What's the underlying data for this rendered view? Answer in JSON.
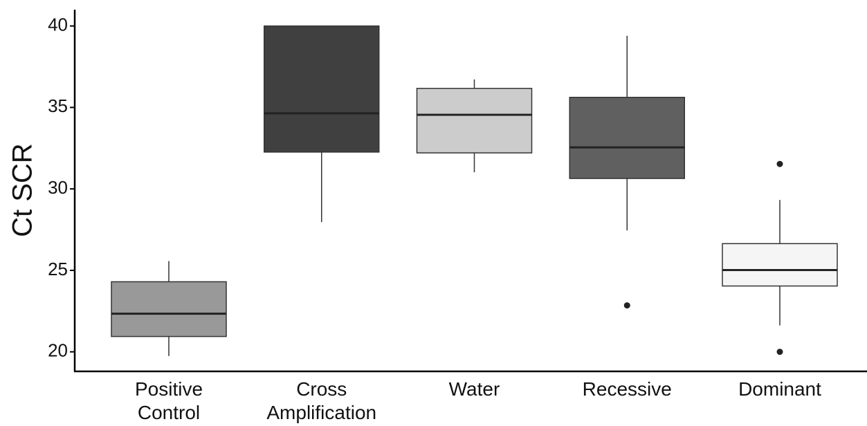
{
  "chart_data": {
    "type": "box",
    "y_label": "Ct SCR",
    "categories": [
      "Positive Control",
      "Cross Amplification",
      "Water",
      "Recessive",
      "Dominant"
    ],
    "colors": [
      "#999999",
      "#404040",
      "#cccccc",
      "#606060",
      "#f5f5f5"
    ],
    "boxes": [
      {
        "whisker_low": 19.74,
        "q1": 20.94,
        "median": 22.34,
        "q3": 24.3,
        "whisker_high": 25.57,
        "outliers": []
      },
      {
        "whisker_low": 27.96,
        "q1": 32.26,
        "median": 34.64,
        "q3": 40.0,
        "whisker_high": 40.0,
        "outliers": []
      },
      {
        "whisker_low": 31.02,
        "q1": 32.21,
        "median": 34.55,
        "q3": 36.17,
        "whisker_high": 36.72,
        "outliers": []
      },
      {
        "whisker_low": 27.45,
        "q1": 30.64,
        "median": 32.55,
        "q3": 35.62,
        "whisker_high": 39.4,
        "outliers": [
          22.85
        ]
      },
      {
        "whisker_low": 21.62,
        "q1": 24.04,
        "median": 25.02,
        "q3": 26.64,
        "whisker_high": 29.32,
        "outliers": [
          31.53,
          20.0
        ]
      }
    ],
    "ylim": [
      18.8,
      41.0
    ],
    "yticks": [
      20,
      25,
      30,
      35,
      40
    ]
  }
}
